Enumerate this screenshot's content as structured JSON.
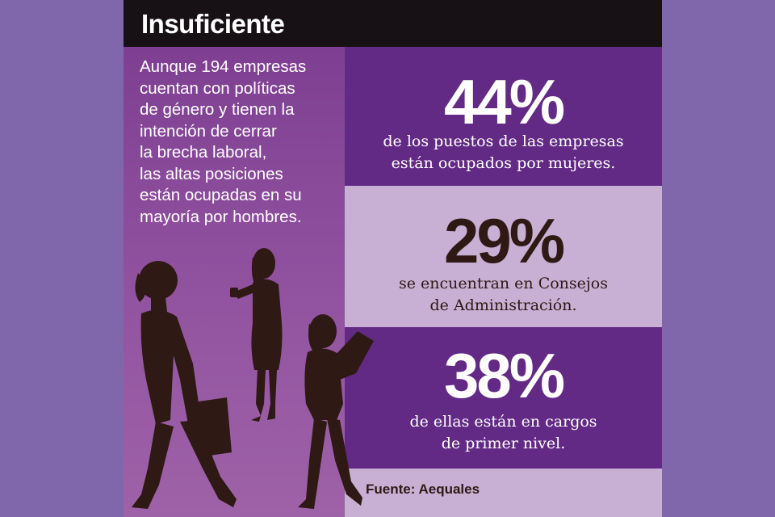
{
  "header": {
    "title": "Insuficiente"
  },
  "intro": {
    "lines": [
      "Aunque 194 empresas",
      "cuentan con políticas",
      "de género y tienen la",
      "intención de cerrar",
      "la brecha laboral,",
      "las altas posiciones",
      "están ocupadas en su",
      "mayoría por hombres."
    ]
  },
  "stats": [
    {
      "value": "44%",
      "lines": [
        "de los puestos de las empresas",
        "están ocupados por mujeres."
      ]
    },
    {
      "value": "29%",
      "lines": [
        "se encuentran en Consejos",
        "de Administración."
      ]
    },
    {
      "value": "38%",
      "lines": [
        "de ellas están en cargos",
        "de primer nivel."
      ]
    }
  ],
  "source": "Fuente: Aequales",
  "colors": {
    "background": "#8067ab",
    "header": "#171015",
    "dark_purple": "#622a84",
    "light_lilac": "#c8b0d4",
    "silhouette": "#2e1914"
  }
}
